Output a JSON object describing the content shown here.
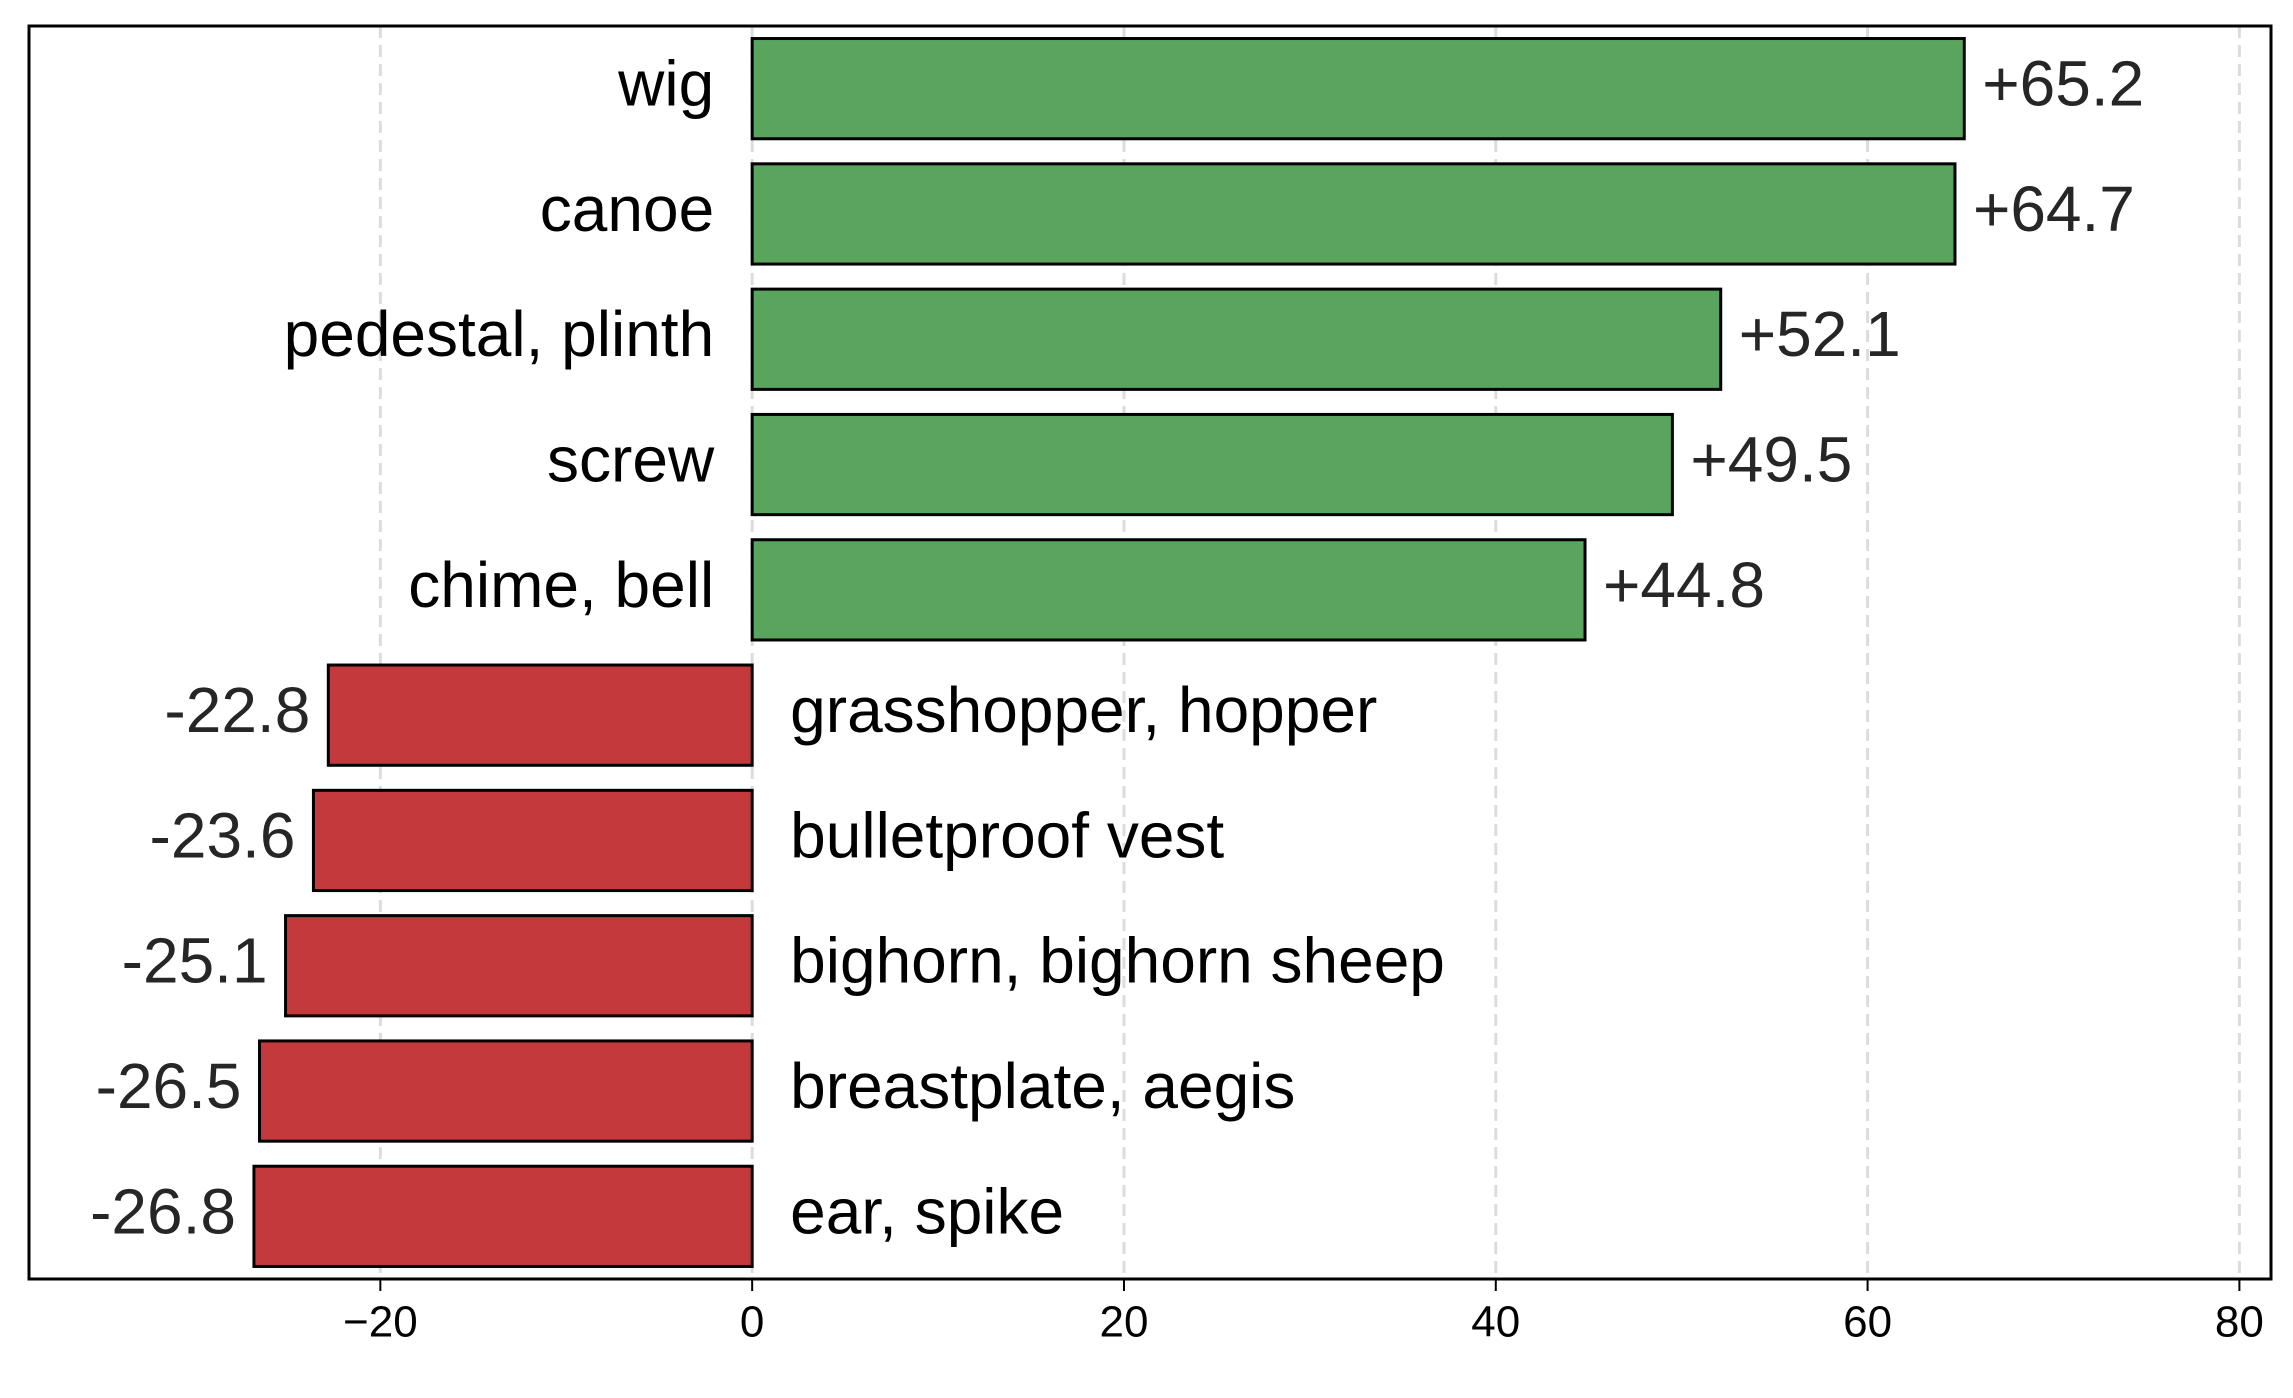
{
  "chart_data": {
    "type": "bar",
    "orientation": "horizontal",
    "categories": [
      "wig",
      "canoe",
      "pedestal, plinth",
      "screw",
      "chime, bell",
      "grasshopper, hopper",
      "bulletproof vest",
      "bighorn, bighorn sheep",
      "breastplate, aegis",
      "ear, spike"
    ],
    "values": [
      65.2,
      64.7,
      52.1,
      49.5,
      44.8,
      -22.8,
      -23.6,
      -25.1,
      -26.5,
      -26.8
    ],
    "value_labels": [
      "+65.2",
      "+64.7",
      "+52.1",
      "+49.5",
      "+44.8",
      "-22.8",
      "-23.6",
      "-25.1",
      "-26.5",
      "-26.8"
    ],
    "colors": [
      "#5aa55e",
      "#5aa55e",
      "#5aa55e",
      "#5aa55e",
      "#5aa55e",
      "#c4393c",
      "#c4393c",
      "#c4393c",
      "#c4393c",
      "#c4393c"
    ],
    "xlim": [
      -38.9,
      81.7
    ],
    "xticks": [
      {
        "value": -20,
        "label": "−20"
      },
      0,
      20,
      40,
      60,
      80
    ],
    "grid": true
  }
}
